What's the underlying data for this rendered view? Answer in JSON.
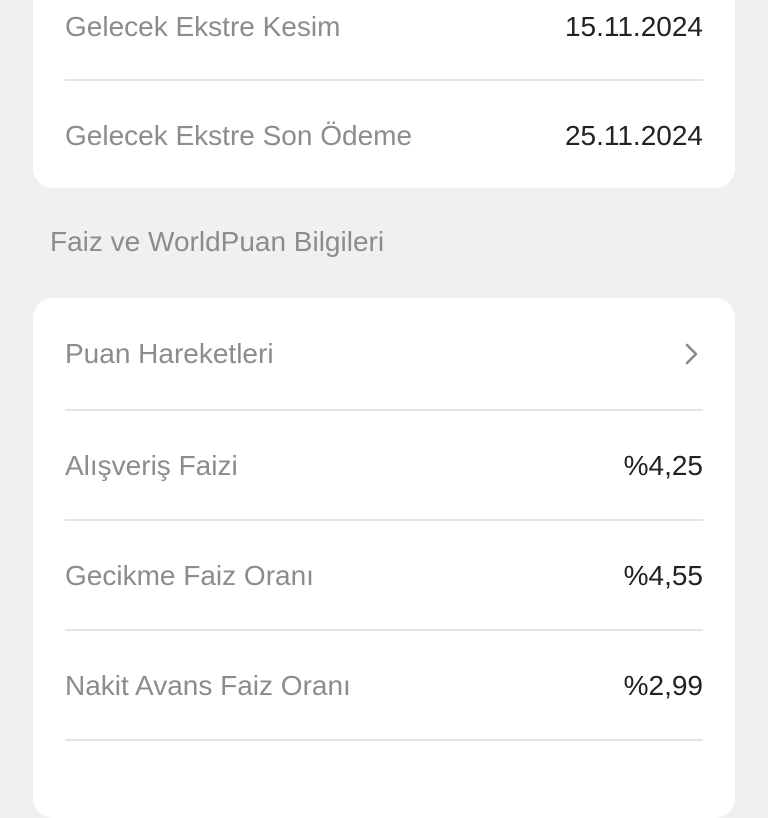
{
  "statement": {
    "rows": [
      {
        "label": "Gelecek Ekstre Kesim",
        "value": "15.11.2024"
      },
      {
        "label": "Gelecek Ekstre Son Ödeme",
        "value": "25.11.2024"
      }
    ]
  },
  "interest": {
    "section_title": "Faiz ve WorldPuan Bilgileri",
    "points_link": {
      "label": "Puan Hareketleri",
      "icon": "chevron-right-icon"
    },
    "rows": [
      {
        "label": "Alışveriş Faizi",
        "value": "%4,25"
      },
      {
        "label": "Gecikme Faiz Oranı",
        "value": "%4,55"
      },
      {
        "label": "Nakit Avans Faiz Oranı",
        "value": "%2,99"
      }
    ]
  }
}
